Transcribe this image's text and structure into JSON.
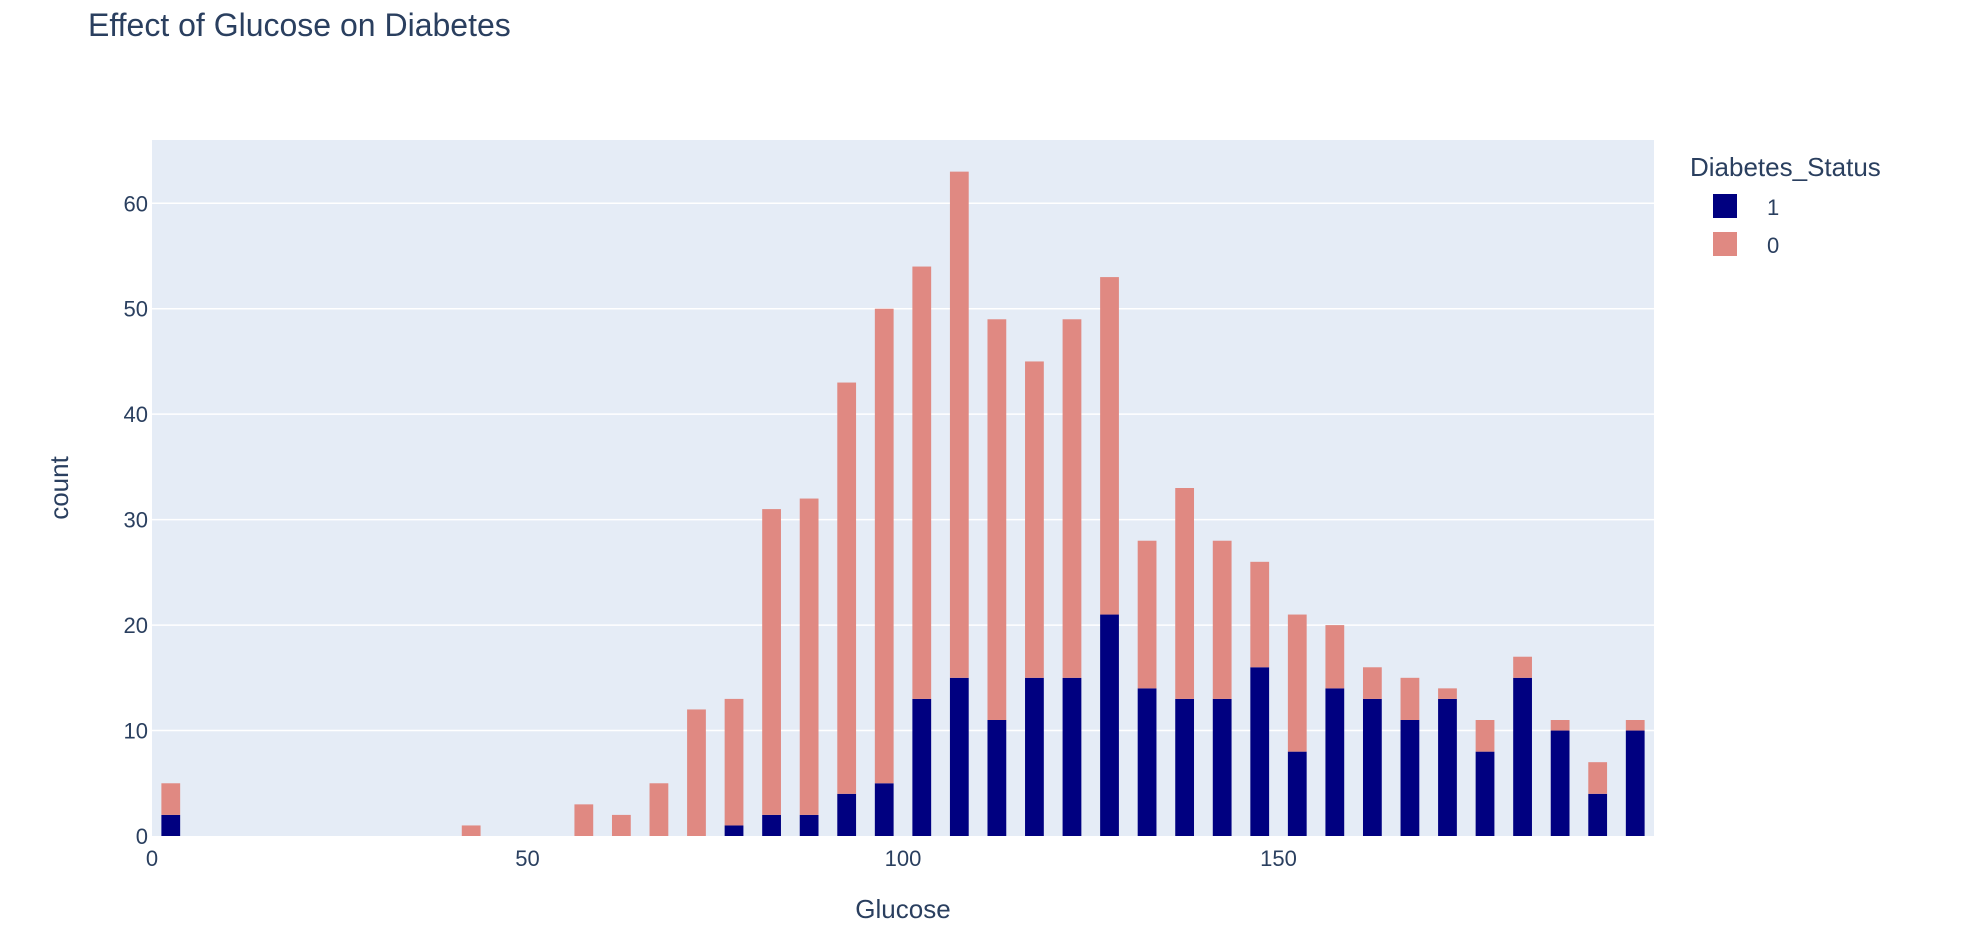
{
  "chart_data": {
    "type": "bar",
    "barmode": "stack",
    "title": "Effect of Glucose on Diabetes",
    "xlabel": "Glucose",
    "ylabel": "count",
    "xlim": [
      0,
      200
    ],
    "ylim": [
      0,
      66
    ],
    "x_ticks": [
      0,
      50,
      100,
      150
    ],
    "y_ticks": [
      0,
      10,
      20,
      30,
      40,
      50,
      60
    ],
    "grid": true,
    "legend": {
      "title": "Diabetes_Status",
      "placement": "top-right"
    },
    "bin_width": 5,
    "x": [
      0,
      40,
      55,
      60,
      65,
      70,
      75,
      80,
      85,
      90,
      95,
      100,
      105,
      110,
      115,
      120,
      125,
      130,
      135,
      140,
      145,
      150,
      155,
      160,
      165,
      170,
      175,
      180,
      185,
      190,
      195
    ],
    "series": [
      {
        "name": "1",
        "color": "#000080",
        "values": [
          2,
          0,
          0,
          0,
          0,
          0,
          1,
          2,
          2,
          4,
          5,
          13,
          15,
          11,
          15,
          15,
          21,
          14,
          13,
          13,
          16,
          8,
          14,
          13,
          11,
          13,
          8,
          15,
          10,
          4,
          10
        ]
      },
      {
        "name": "0",
        "color": "#e08982",
        "values": [
          3,
          1,
          3,
          2,
          5,
          12,
          12,
          29,
          30,
          39,
          45,
          41,
          48,
          38,
          30,
          34,
          32,
          14,
          20,
          15,
          10,
          13,
          6,
          3,
          4,
          1,
          3,
          2,
          1,
          3,
          1
        ]
      }
    ]
  },
  "colors": {
    "plot_bg": "#e5ecf6",
    "grid": "#ffffff",
    "text": "#2a3f5f"
  }
}
